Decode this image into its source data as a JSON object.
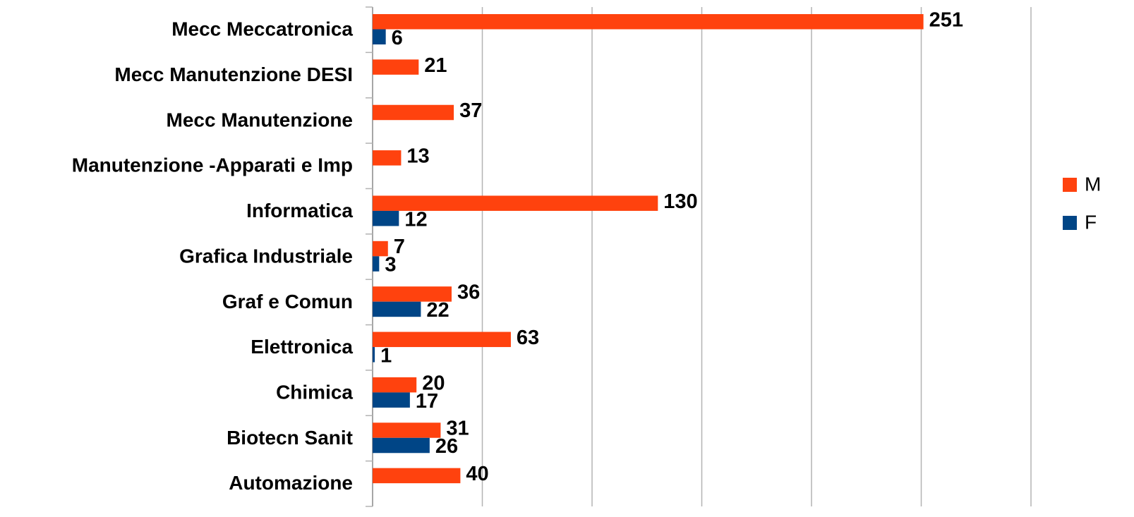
{
  "chart_data": {
    "type": "barh",
    "categories": [
      "Mecc Meccatronica",
      "Mecc Manutenzione  DESI",
      "Mecc Manutenzione",
      "Manutenzione -Apparati e Imp",
      "Informatica",
      "Grafica Industriale",
      "Graf e Comun",
      "Elettronica",
      "Chimica",
      "Biotecn Sanit",
      "Automazione"
    ],
    "series": [
      {
        "name": "M",
        "color": "#ff420e",
        "values": [
          251,
          21,
          37,
          13,
          130,
          7,
          36,
          63,
          20,
          31,
          40
        ]
      },
      {
        "name": "F",
        "color": "#004586",
        "values": [
          6,
          null,
          null,
          null,
          12,
          3,
          22,
          1,
          17,
          26,
          null
        ]
      }
    ],
    "xlim": [
      0,
      300
    ],
    "xticks": [
      0,
      50,
      100,
      150,
      200,
      250,
      300
    ],
    "grid": true,
    "legend": "right"
  }
}
